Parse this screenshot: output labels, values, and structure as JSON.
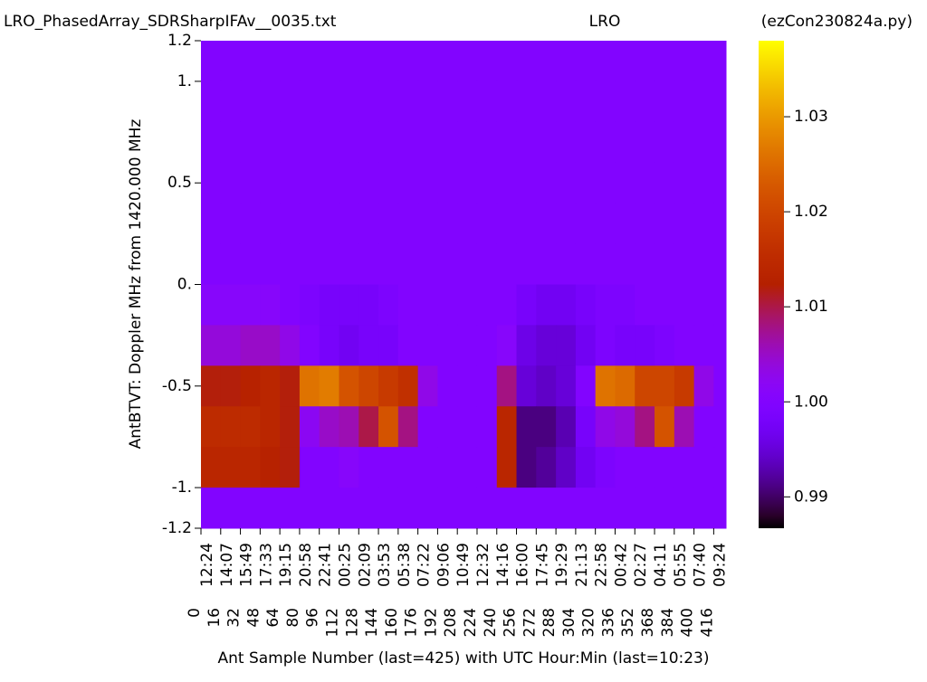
{
  "chart_data": {
    "type": "heatmap",
    "title_left": "LRO_PhasedArray_SDRSharpIFAv__0035.txt",
    "title_center": "LRO",
    "title_right": "(ezCon230824a.py)",
    "ylabel": "AntBTVT:  Doppler MHz from 1420.000 MHz",
    "xlabel": "Ant Sample Number (last=425) with UTC Hour:Min (last=10:23)",
    "colormap": "gnuplot",
    "xlim": [
      0,
      426
    ],
    "ylim": [
      -1.2,
      1.2
    ],
    "clim": [
      0.9867,
      1.038
    ],
    "xticks": [
      0,
      16,
      32,
      48,
      64,
      80,
      96,
      112,
      128,
      144,
      160,
      176,
      192,
      208,
      224,
      240,
      256,
      272,
      288,
      304,
      320,
      336,
      352,
      368,
      384,
      400,
      416
    ],
    "xtick_times": [
      "12:24",
      "14:07",
      "15:49",
      "17:33",
      "19:15",
      "20:58",
      "22:41",
      "00:25",
      "02:09",
      "03:53",
      "05:38",
      "07:22",
      "09:06",
      "10:49",
      "12:32",
      "14:16",
      "16:00",
      "17:45",
      "19:29",
      "21:13",
      "22:58",
      "00:42",
      "02:27",
      "04:11",
      "05:55",
      "07:40",
      "09:24"
    ],
    "yticks": [
      1.2,
      {
        "value": 1,
        "label": "1."
      },
      0.5,
      {
        "value": 0,
        "label": "0."
      },
      -0.5,
      {
        "value": -1,
        "label": "-1."
      },
      -1.2
    ],
    "cticks": [
      0.99,
      {
        "value": 1,
        "label": "1.00"
      },
      1.01,
      1.02,
      1.03
    ],
    "z": [
      [
        1.0,
        1.0,
        1.0,
        1.0,
        1.0,
        1.0,
        1.0,
        1.0,
        1.0,
        1.0,
        1.0,
        1.0,
        1.0,
        1.0,
        1.0,
        1.0,
        1.0,
        1.0,
        1.0,
        1.0,
        1.0,
        1.0,
        1.0,
        1.0,
        1.0,
        1.0,
        1.0
      ],
      [
        1.0,
        1.0,
        1.0,
        1.0,
        1.0,
        1.0,
        1.0,
        1.0,
        1.0,
        1.0,
        1.0,
        1.0,
        1.0,
        1.0,
        1.0,
        1.0,
        1.0,
        1.0,
        1.0,
        1.0,
        1.0,
        1.0,
        1.0,
        1.0,
        1.0,
        1.0,
        1.0
      ],
      [
        1.0,
        1.0,
        1.0,
        1.0,
        1.0,
        1.0,
        1.0,
        1.0,
        1.0,
        1.0,
        1.0,
        1.0,
        1.0,
        1.0,
        1.0,
        1.0,
        1.0,
        1.0,
        1.0,
        1.0,
        1.0,
        1.0,
        1.0,
        1.0,
        1.0,
        1.0,
        1.0
      ],
      [
        1.0,
        1.0,
        1.0,
        1.0,
        1.0,
        1.0,
        1.0,
        1.0,
        1.0,
        1.0,
        1.0,
        1.0,
        1.0,
        1.0,
        1.0,
        1.0,
        1.0,
        1.0,
        1.0,
        1.0,
        1.0,
        1.0,
        1.0,
        1.0,
        1.0,
        1.0,
        1.0
      ],
      [
        1.0,
        1.0,
        1.0,
        1.0,
        1.0,
        1.0,
        1.0,
        1.0,
        1.0,
        1.0,
        1.0,
        1.0,
        1.0,
        1.0,
        1.0,
        1.0,
        1.0,
        1.0,
        1.0,
        1.0,
        1.0,
        1.0,
        1.0,
        1.0,
        1.0,
        1.0,
        1.0
      ],
      [
        1.0,
        1.0,
        1.0,
        1.0,
        1.0,
        1.0,
        1.0,
        1.0,
        1.0,
        1.0,
        1.0,
        1.0,
        1.0,
        1.0,
        1.0,
        1.0,
        1.0,
        1.0,
        1.0,
        1.0,
        1.0,
        1.0,
        1.0,
        1.0,
        1.0,
        1.0,
        1.0
      ],
      [
        1.001,
        1.001,
        1.001,
        1.001,
        1.0,
        0.999,
        0.998,
        0.998,
        0.998,
        0.999,
        1.0,
        1.0,
        1.0,
        1.0,
        1.0,
        1.0,
        0.998,
        0.997,
        0.997,
        0.998,
        0.999,
        0.999,
        1.0,
        1.0,
        1.0,
        1.0,
        1.0
      ],
      [
        1.004,
        1.004,
        1.005,
        1.005,
        1.003,
        1.0,
        0.998,
        0.997,
        0.998,
        0.998,
        1.0,
        1.0,
        1.0,
        1.0,
        1.0,
        1.001,
        0.996,
        0.995,
        0.995,
        0.997,
        0.999,
        0.998,
        0.998,
        0.999,
        1.0,
        1.0,
        1.0
      ],
      [
        1.012,
        1.012,
        1.013,
        1.014,
        1.012,
        1.026,
        1.027,
        1.022,
        1.02,
        1.018,
        1.016,
        1.003,
        1.0,
        1.0,
        1.0,
        1.008,
        0.995,
        0.994,
        0.995,
        1.0,
        1.026,
        1.025,
        1.02,
        1.02,
        1.018,
        1.003,
        1.0
      ],
      [
        1.015,
        1.015,
        1.015,
        1.014,
        1.012,
        1.002,
        1.005,
        1.006,
        1.01,
        1.022,
        1.008,
        1.0,
        1.0,
        1.0,
        1.0,
        1.014,
        0.991,
        0.991,
        0.993,
        0.998,
        1.003,
        1.004,
        1.008,
        1.022,
        1.006,
        1.0,
        1.0
      ],
      [
        1.014,
        1.014,
        1.014,
        1.013,
        1.012,
        1.0,
        1.0,
        1.001,
        1.0,
        1.0,
        1.0,
        1.0,
        1.0,
        1.0,
        1.0,
        1.014,
        0.991,
        0.992,
        0.994,
        0.997,
        0.999,
        1.0,
        1.0,
        1.0,
        1.0,
        1.0,
        1.0
      ],
      [
        1.0,
        1.0,
        1.0,
        1.0,
        1.0,
        1.0,
        1.0,
        1.0,
        1.0,
        1.0,
        1.0,
        1.0,
        1.0,
        1.0,
        1.0,
        1.0,
        1.0,
        1.0,
        1.0,
        1.0,
        1.0,
        1.0,
        1.0,
        1.0,
        1.0,
        1.0,
        1.0
      ]
    ]
  }
}
